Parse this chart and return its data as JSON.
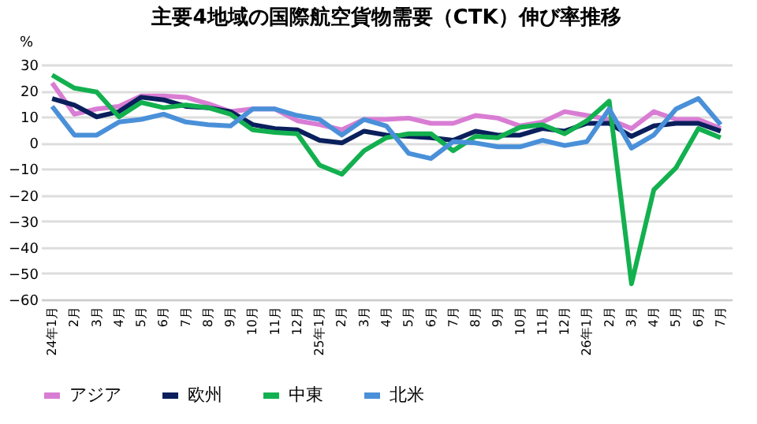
{
  "chart_data": {
    "type": "line",
    "title": "主要4地域の国際航空貨物需要（CTK）伸び率推移",
    "ylabel": "%",
    "categories": [
      "24年1月",
      "2月",
      "3月",
      "4月",
      "5月",
      "6月",
      "7月",
      "8月",
      "9月",
      "10月",
      "11月",
      "12月",
      "25年1月",
      "2月",
      "3月",
      "4月",
      "5月",
      "6月",
      "7月",
      "8月",
      "9月",
      "10月",
      "11月",
      "12月",
      "26年1月",
      "2月",
      "3月",
      "4月",
      "5月",
      "6月",
      "7月"
    ],
    "series": [
      {
        "name": "アジア",
        "color": "#d97dd4",
        "values": [
          23,
          11,
          13,
          14,
          18,
          18,
          17.5,
          15,
          12,
          13,
          13,
          8.5,
          7,
          5,
          9,
          9,
          9.5,
          7.5,
          7.5,
          10.5,
          9.5,
          6.5,
          8,
          12,
          10.5,
          9,
          5.5,
          12,
          9,
          9,
          5.5
        ]
      },
      {
        "name": "欧州",
        "color": "#0a1f5c",
        "values": [
          17,
          14.5,
          10,
          12,
          17.5,
          16.5,
          14,
          13.5,
          12,
          7,
          5.5,
          5,
          1,
          0,
          4.5,
          3,
          2.5,
          2,
          1,
          4.5,
          3,
          3,
          5.5,
          4.5,
          7.5,
          7.5,
          2.5,
          6.5,
          7.5,
          7.5,
          4.5
        ]
      },
      {
        "name": "中東",
        "color": "#13b04f",
        "values": [
          26,
          21,
          19.5,
          10,
          15.5,
          13.5,
          14.5,
          13.5,
          11,
          5,
          4,
          3.5,
          -8.5,
          -12,
          -3,
          2,
          3.5,
          3.5,
          -3,
          2.5,
          2,
          6,
          7,
          3.5,
          8.5,
          16,
          -54,
          -18,
          -9.5,
          5.5,
          2
        ]
      },
      {
        "name": "北米",
        "color": "#4a90d9",
        "values": [
          14,
          3,
          3,
          8,
          9,
          11,
          8,
          7,
          6.5,
          13,
          13,
          10.5,
          9,
          3,
          9,
          6.5,
          -4,
          -6,
          0.5,
          0,
          -1.5,
          -1.5,
          1,
          -1,
          0.5,
          13,
          -2,
          3,
          13,
          17,
          7
        ]
      }
    ],
    "ylim": [
      -60,
      30
    ],
    "yticks": [
      -60,
      -50,
      -40,
      -30,
      -20,
      -10,
      0,
      10,
      20,
      30
    ],
    "grid": "y",
    "legend": "bottom",
    "marker": "none",
    "line_style": "solid"
  }
}
